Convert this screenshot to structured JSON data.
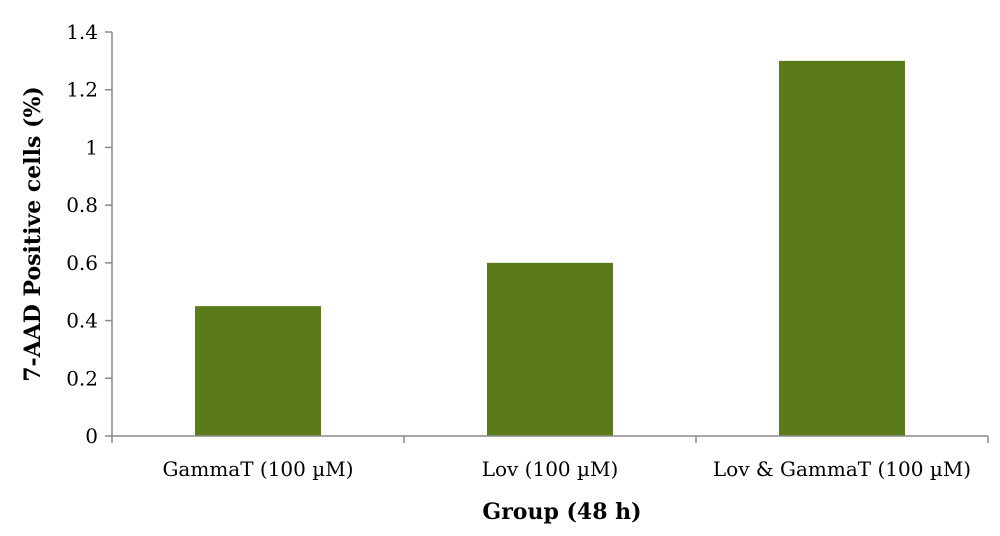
{
  "chart_data": {
    "type": "bar",
    "categories": [
      "GammaT (100 µM)",
      "Lov  (100 µM)",
      "Lov  & GammaT (100 µM)"
    ],
    "values": [
      0.45,
      0.6,
      1.3
    ],
    "xlabel": "Group (48 h)",
    "ylabel": "7-AAD Positive cells (%)",
    "ylim": [
      0,
      1.4
    ],
    "yticks": [
      "0",
      "0.2",
      "0.4",
      "0.6",
      "0.8",
      "1",
      "1.2",
      "1.4"
    ],
    "bar_color": "#5b7a1a",
    "grid": false,
    "legend": "none"
  }
}
